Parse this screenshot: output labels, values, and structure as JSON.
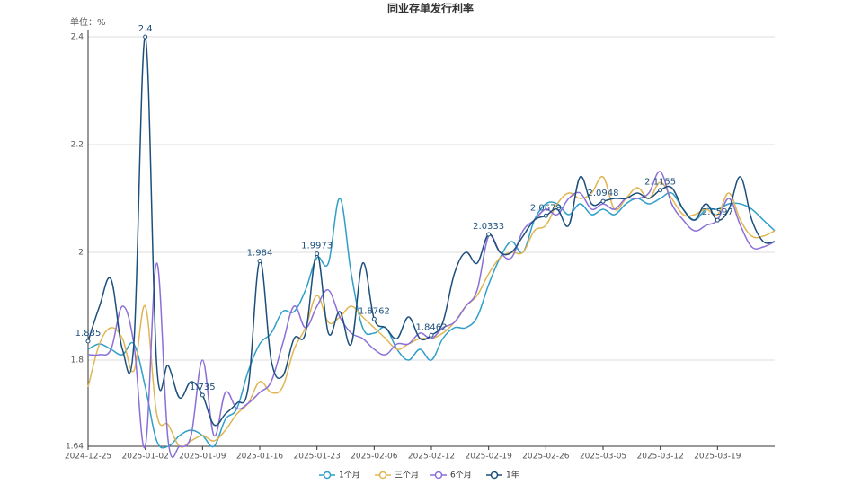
{
  "chart_data": {
    "type": "line",
    "title": "同业存单发行利率",
    "y_label": "单位：%",
    "categories": [
      "2024-12-25",
      null,
      null,
      null,
      null,
      "2025-01-02",
      null,
      null,
      null,
      null,
      "2025-01-09",
      null,
      null,
      null,
      null,
      "2025-01-16",
      null,
      null,
      null,
      null,
      "2025-01-23",
      null,
      null,
      null,
      null,
      "2025-02-06",
      null,
      null,
      null,
      null,
      "2025-02-12",
      null,
      null,
      null,
      null,
      "2025-02-19",
      null,
      null,
      null,
      null,
      "2025-02-26",
      null,
      null,
      null,
      null,
      "2025-03-05",
      null,
      null,
      null,
      null,
      "2025-03-12",
      null,
      null,
      null,
      null,
      "2025-03-19",
      null,
      null,
      null,
      null,
      null
    ],
    "ylim": [
      1.64,
      2.4
    ],
    "yticks": [
      1.64,
      1.8,
      2,
      2.2,
      2.4
    ],
    "grid": true,
    "series": [
      {
        "name": "1个月",
        "color": "#2f9fc8",
        "values": [
          1.82,
          1.83,
          1.82,
          1.81,
          1.83,
          1.75,
          1.65,
          1.64,
          1.66,
          1.67,
          1.66,
          1.64,
          1.69,
          1.71,
          1.78,
          1.83,
          1.85,
          1.89,
          1.89,
          1.93,
          1.99,
          1.98,
          2.1,
          1.96,
          1.86,
          1.85,
          1.86,
          1.82,
          1.8,
          1.82,
          1.8,
          1.84,
          1.86,
          1.86,
          1.88,
          1.94,
          1.99,
          2.02,
          2.0,
          2.06,
          2.09,
          2.09,
          2.07,
          2.09,
          2.07,
          2.08,
          2.07,
          2.09,
          2.1,
          2.09,
          2.1,
          2.11,
          2.08,
          2.06,
          2.08,
          2.08,
          2.09,
          2.09,
          2.08,
          2.06,
          2.04
        ]
      },
      {
        "name": "三个月",
        "color": "#e0b553",
        "values": [
          1.75,
          1.83,
          1.86,
          1.84,
          1.78,
          1.9,
          1.7,
          1.68,
          1.64,
          1.65,
          1.66,
          1.65,
          1.67,
          1.7,
          1.72,
          1.76,
          1.74,
          1.75,
          1.82,
          1.86,
          1.92,
          1.87,
          1.88,
          1.9,
          1.88,
          1.86,
          1.84,
          1.82,
          1.83,
          1.84,
          1.84,
          1.85,
          1.87,
          1.9,
          1.92,
          1.96,
          1.99,
          2.0,
          2.0,
          2.04,
          2.05,
          2.09,
          2.11,
          2.1,
          2.11,
          2.14,
          2.08,
          2.1,
          2.12,
          2.1,
          2.13,
          2.1,
          2.07,
          2.07,
          2.08,
          2.07,
          2.11,
          2.06,
          2.03,
          2.03,
          2.04
        ]
      },
      {
        "name": "6个月",
        "color": "#8b6fd8",
        "values": [
          1.81,
          1.81,
          1.82,
          1.9,
          1.83,
          1.64,
          1.98,
          1.65,
          1.64,
          1.66,
          1.8,
          1.66,
          1.74,
          1.71,
          1.72,
          1.74,
          1.76,
          1.83,
          1.9,
          1.86,
          1.9,
          1.93,
          1.88,
          1.85,
          1.84,
          1.82,
          1.81,
          1.83,
          1.83,
          1.85,
          1.84,
          1.86,
          1.87,
          1.9,
          1.93,
          2.03,
          2.0,
          1.99,
          2.04,
          2.06,
          2.08,
          2.07,
          2.1,
          2.11,
          2.08,
          2.09,
          2.08,
          2.1,
          2.1,
          2.11,
          2.15,
          2.09,
          2.06,
          2.04,
          2.05,
          2.06,
          2.1,
          2.05,
          2.01,
          2.01,
          2.02
        ]
      },
      {
        "name": "1年",
        "color": "#1d4f7c",
        "values": [
          1.835,
          1.9,
          1.95,
          1.82,
          1.83,
          2.4,
          1.79,
          1.79,
          1.73,
          1.76,
          1.735,
          1.68,
          1.7,
          1.72,
          1.75,
          1.984,
          1.8,
          1.77,
          1.84,
          1.85,
          1.9973,
          1.85,
          1.89,
          1.83,
          1.98,
          1.8762,
          1.86,
          1.84,
          1.88,
          1.84,
          1.8462,
          1.87,
          1.96,
          2.0,
          1.98,
          2.0333,
          2.0,
          2.0,
          2.03,
          2.06,
          2.0679,
          2.08,
          2.05,
          2.14,
          2.09,
          2.0948,
          2.1,
          2.1,
          2.11,
          2.1,
          2.1155,
          2.12,
          2.08,
          2.06,
          2.09,
          2.0597,
          2.08,
          2.14,
          2.06,
          2.02,
          2.02
        ],
        "value_labels": [
          "1.835",
          null,
          null,
          null,
          null,
          "2.4",
          null,
          null,
          null,
          null,
          "1.735",
          null,
          null,
          null,
          null,
          "1.984",
          null,
          null,
          null,
          null,
          "1.9973",
          null,
          null,
          null,
          null,
          "1.8762",
          null,
          null,
          null,
          null,
          "1.8462",
          null,
          null,
          null,
          null,
          "2.0333",
          null,
          null,
          null,
          null,
          "2.0679",
          null,
          null,
          null,
          null,
          "2.0948",
          null,
          null,
          null,
          null,
          "2.1155",
          null,
          null,
          null,
          null,
          "2.0597",
          null,
          null,
          null,
          null,
          null
        ]
      }
    ]
  }
}
